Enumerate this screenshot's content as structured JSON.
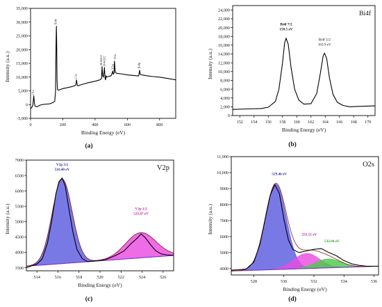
{
  "chart_data": [
    {
      "id": "a",
      "type": "line",
      "caption": "(a)",
      "title": "",
      "xlabel": "Binding Energy (eV)",
      "ylabel": "Intensity (a.u.)",
      "xlim": [
        0,
        900
      ],
      "ylim": [
        -5000,
        35000
      ],
      "xticks": [
        0,
        200,
        400,
        600,
        800
      ],
      "xtick_labels": [
        "0",
        "200",
        "400",
        "600",
        "800"
      ],
      "yticks": [
        -5000,
        0,
        5000,
        10000,
        15000,
        20000,
        25000,
        30000,
        35000
      ],
      "ytick_labels": [
        "-5,000",
        "0",
        "5,000",
        "10,000",
        "15,000",
        "20,000",
        "25,000",
        "30,000",
        "35,000"
      ],
      "series": [
        {
          "color": "#000000",
          "x": [
            0,
            8,
            14,
            20,
            24,
            28,
            40,
            60,
            80,
            100,
            120,
            140,
            150,
            155,
            158,
            160,
            162,
            164,
            167,
            172,
            180,
            200,
            230,
            260,
            280,
            285,
            290,
            295,
            300,
            330,
            360,
            400,
            430,
            440,
            443,
            447,
            452,
            458,
            462,
            465,
            468,
            472,
            480,
            500,
            510,
            513,
            518,
            520,
            525,
            530,
            540,
            560,
            600,
            640,
            670,
            676,
            680,
            690,
            720,
            760,
            800,
            850,
            900
          ],
          "y": [
            -1500,
            -1000,
            -200,
            3200,
            400,
            -600,
            -800,
            -200,
            100,
            200,
            300,
            800,
            1200,
            5000,
            22000,
            28500,
            23000,
            9000,
            5500,
            5200,
            5400,
            5800,
            6200,
            6600,
            7000,
            9000,
            7000,
            6800,
            7000,
            7500,
            8000,
            8500,
            9000,
            9500,
            13800,
            10500,
            10000,
            13500,
            9500,
            9000,
            10500,
            10000,
            10200,
            10500,
            12200,
            11000,
            11500,
            15800,
            12000,
            11500,
            11300,
            11200,
            10800,
            10600,
            10400,
            12500,
            11000,
            10800,
            10500,
            10200,
            10000,
            9500,
            9000
          ]
        }
      ],
      "annotations": [
        {
          "x": 22,
          "y": 3000,
          "text": "C1s"
        },
        {
          "x": 162,
          "y": 28600,
          "text": "Bi4f"
        },
        {
          "x": 286,
          "y": 8900,
          "text": "C1s"
        },
        {
          "x": 443,
          "y": 13800,
          "text": "Bi4d5/2"
        },
        {
          "x": 463,
          "y": 13500,
          "text": "Bi4d3/2"
        },
        {
          "x": 515,
          "y": 12200,
          "text": "V2p"
        },
        {
          "x": 529,
          "y": 16000,
          "text": "O1s"
        },
        {
          "x": 678,
          "y": 12600,
          "text": "Bi4p"
        }
      ]
    },
    {
      "id": "b",
      "type": "line",
      "caption": "(b)",
      "title": "Bi4f",
      "xlabel": "Binding Energy (eV)",
      "ylabel": "Intensity (a.u.)",
      "xlim": [
        151,
        171
      ],
      "ylim": [
        0,
        25000
      ],
      "xticks": [
        152,
        154,
        156,
        158,
        160,
        162,
        164,
        166,
        168,
        170
      ],
      "xtick_labels": [
        "152",
        "154",
        "156",
        "158",
        "160",
        "162",
        "164",
        "166",
        "168",
        "170"
      ],
      "yticks": [
        0,
        2000,
        4000,
        6000,
        8000,
        10000,
        12000,
        14000,
        16000,
        18000,
        20000,
        22000,
        24000
      ],
      "ytick_labels": [
        "0",
        "2,000",
        "4,000",
        "6,000",
        "8,000",
        "10,000",
        "12,000",
        "14,000",
        "16,000",
        "18,000",
        "20,000",
        "22,000",
        "24,000"
      ],
      "series": [
        {
          "color": "#000000",
          "x": [
            151,
            153,
            155,
            156,
            157,
            157.5,
            158,
            158.3,
            158.5,
            158.8,
            159.2,
            159.7,
            160.3,
            161,
            162,
            162.8,
            163.3,
            163.7,
            163.9,
            164.2,
            164.6,
            165.1,
            165.7,
            166.5,
            167.5,
            169,
            171
          ],
          "y": [
            1400,
            1500,
            1600,
            1900,
            3200,
            6000,
            12000,
            16500,
            17600,
            16200,
            11000,
            6000,
            3500,
            2600,
            2700,
            5000,
            9500,
            13500,
            14200,
            13000,
            8500,
            4800,
            3000,
            2300,
            2000,
            2100,
            2200
          ]
        }
      ],
      "annotations": [
        {
          "x": 158.5,
          "y": 20500,
          "lines": [
            "Bi4f 7/2",
            "158.5 eV"
          ],
          "bold": true
        },
        {
          "x": 163.9,
          "y": 17000,
          "lines": [
            "Bi4f 5/2",
            "163.9 eV"
          ],
          "bold": false
        }
      ]
    },
    {
      "id": "c",
      "type": "area",
      "caption": "(c)",
      "title": "V2p",
      "xlabel": "Binding Energy (eV)",
      "ylabel": "Intensity (a.u.)",
      "xlim": [
        513,
        527
      ],
      "ylim": [
        3400,
        7000
      ],
      "xticks": [
        514,
        516,
        518,
        520,
        522,
        524,
        526
      ],
      "xtick_labels": [
        "514",
        "516",
        "518",
        "520",
        "522",
        "524",
        "526"
      ],
      "yticks": [
        3500,
        4000,
        4500,
        5000,
        5500,
        6000,
        6500,
        7000
      ],
      "ytick_labels": [
        "3500",
        "4000",
        "4500",
        "5000",
        "5500",
        "6000",
        "6500",
        "7000"
      ],
      "baseline": {
        "x": [
          513,
          527
        ],
        "y": [
          3550,
          3900
        ]
      },
      "peaks": [
        {
          "name": "V2p 3/2",
          "center": 516.4,
          "height": 2750,
          "width": 0.95,
          "color": "#5b5ce0"
        },
        {
          "name": "V2p 1/2",
          "center": 523.87,
          "height": 820,
          "width": 1.45,
          "color": "#ea4ce0"
        }
      ],
      "raw": {
        "color": "#000000",
        "x": [
          513,
          513.5,
          514,
          514.5,
          515,
          515.4,
          515.8,
          516.1,
          516.4,
          516.7,
          517,
          517.4,
          517.8,
          518.3,
          518.8,
          519.5,
          520.5,
          521.5,
          522.3,
          523,
          523.5,
          523.9,
          524.3,
          524.8,
          525.3,
          525.8,
          526.3,
          527
        ],
        "y": [
          3500,
          3560,
          3620,
          3780,
          4300,
          5000,
          5900,
          6300,
          6420,
          6150,
          5500,
          4700,
          4100,
          3800,
          3700,
          3720,
          3760,
          3900,
          4050,
          4300,
          4450,
          4600,
          4480,
          4250,
          4050,
          3950,
          3920,
          3900
        ]
      },
      "annotations": [
        {
          "x": 516.4,
          "y": 6820,
          "lines": [
            "V2p 3/2",
            "516.40 eV"
          ],
          "color": "#2d2a9e"
        },
        {
          "x": 523.9,
          "y": 5380,
          "lines": [
            "V2p 1/2",
            "523.87 eV"
          ],
          "color": "#c41ab8"
        }
      ]
    },
    {
      "id": "d",
      "type": "area",
      "caption": "(d)",
      "title": "O2s",
      "xlabel": "Binding Energy (eV)",
      "ylabel": "Intensity (a.u.)",
      "xlim": [
        526.5,
        536.3
      ],
      "ylim": [
        3600,
        11000
      ],
      "xticks": [
        528,
        530,
        532,
        534,
        536
      ],
      "xtick_labels": [
        "528",
        "530",
        "532",
        "534",
        "536"
      ],
      "yticks": [
        4000,
        5000,
        6000,
        7000,
        8000,
        9000,
        10000,
        11000
      ],
      "ytick_labels": [
        "4000",
        "5000",
        "6000",
        "7000",
        "8000",
        "9000",
        "10,000",
        "11,000"
      ],
      "baseline": {
        "x": [
          526.5,
          536.3
        ],
        "y": [
          3850,
          4150
        ]
      },
      "peaks": [
        {
          "name": "529.46 eV",
          "center": 529.46,
          "height": 5350,
          "width": 0.7,
          "color": "#5b5ce0"
        },
        {
          "name": "531.51 eV",
          "center": 531.51,
          "height": 950,
          "width": 0.85,
          "color": "#ea4ce0"
        },
        {
          "name": "532.94 eV",
          "center": 532.94,
          "height": 560,
          "width": 0.85,
          "color": "#49cc49"
        }
      ],
      "raw": {
        "color": "#000000",
        "x": [
          526.5,
          527,
          527.5,
          528,
          528.4,
          528.8,
          529.1,
          529.4,
          529.7,
          530,
          530.3,
          530.6,
          531,
          531.5,
          532,
          532.5,
          533,
          533.5,
          534,
          534.5,
          535,
          535.5,
          536.3
        ],
        "y": [
          3900,
          3920,
          3980,
          4400,
          5500,
          7300,
          8600,
          9250,
          8700,
          7100,
          5800,
          5200,
          5000,
          5100,
          5200,
          5250,
          5000,
          4800,
          4500,
          4300,
          4200,
          4150,
          4150
        ]
      },
      "annotations": [
        {
          "x": 529.7,
          "y": 9850,
          "lines": [
            "529.46 eV"
          ],
          "color": "#2d2a9e"
        },
        {
          "x": 531.7,
          "y": 6050,
          "lines": [
            "531.51 eV"
          ],
          "color": "#c41ab8"
        },
        {
          "x": 533.2,
          "y": 5650,
          "lines": [
            "532.94 eV"
          ],
          "color": "#2a9e2a"
        }
      ]
    }
  ]
}
